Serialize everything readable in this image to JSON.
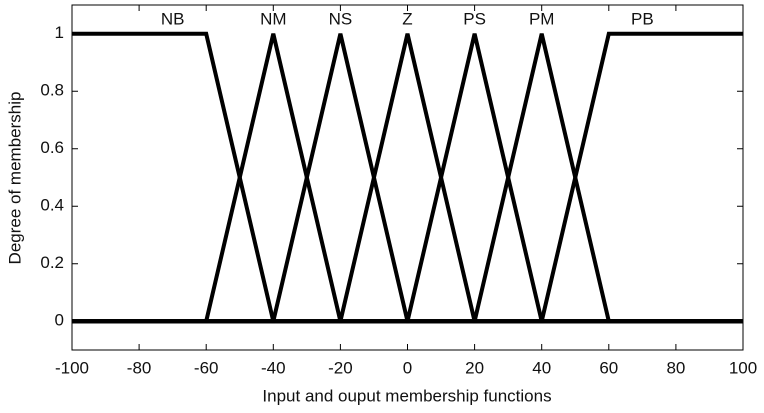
{
  "chart_data": {
    "type": "line",
    "xlabel": "Input and ouput membership functions",
    "ylabel": "Degree of membership",
    "xlim": [
      -100,
      100
    ],
    "ylim": [
      -0.1,
      1.1
    ],
    "xticks": [
      -100,
      -80,
      -60,
      -40,
      -20,
      0,
      20,
      40,
      60,
      80,
      100
    ],
    "yticks": [
      0,
      0.2,
      0.4,
      0.6,
      0.8,
      1
    ],
    "series": [
      {
        "name": "NB",
        "color": "#000000",
        "x": [
          -100,
          -60,
          -40,
          100
        ],
        "values": [
          1,
          1,
          0,
          0
        ]
      },
      {
        "name": "NM",
        "color": "#000000",
        "x": [
          -100,
          -60,
          -40,
          -20,
          100
        ],
        "values": [
          0,
          0,
          1,
          0,
          0
        ]
      },
      {
        "name": "NS",
        "color": "#000000",
        "x": [
          -100,
          -40,
          -20,
          0,
          100
        ],
        "values": [
          0,
          0,
          1,
          0,
          0
        ]
      },
      {
        "name": "Z",
        "color": "#000000",
        "x": [
          -100,
          -20,
          0,
          20,
          100
        ],
        "values": [
          0,
          0,
          1,
          0,
          0
        ]
      },
      {
        "name": "PS",
        "color": "#000000",
        "x": [
          -100,
          0,
          20,
          40,
          100
        ],
        "values": [
          0,
          0,
          1,
          0,
          0
        ]
      },
      {
        "name": "PM",
        "color": "#000000",
        "x": [
          -100,
          20,
          40,
          60,
          100
        ],
        "values": [
          0,
          0,
          1,
          0,
          0
        ]
      },
      {
        "name": "PB",
        "color": "#000000",
        "x": [
          -100,
          40,
          60,
          100
        ],
        "values": [
          0,
          0,
          1,
          1
        ]
      }
    ]
  }
}
